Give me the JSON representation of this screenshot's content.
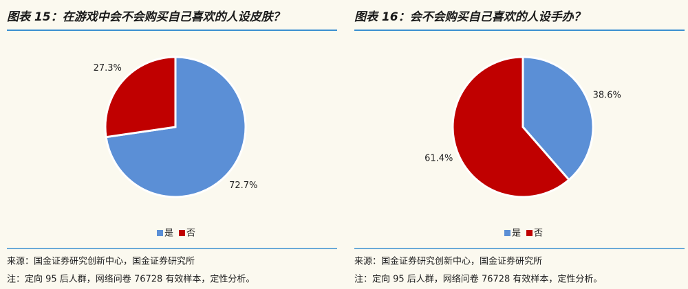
{
  "chart_data": [
    {
      "type": "pie",
      "title": "图表 15：在游戏中会不会购买自己喜欢的人设皮肤？",
      "categories": [
        "是",
        "否"
      ],
      "values": [
        72.7,
        27.3
      ],
      "value_labels": [
        "72.7%",
        "27.3%"
      ],
      "colors": [
        "#5b8fd6",
        "#c00000"
      ],
      "source": "来源：国金证券研究创新中心，国金证券研究所",
      "note": "注：定向 95 后人群，网络问卷 76728 有效样本，定性分析。"
    },
    {
      "type": "pie",
      "title": "图表 16：会不会购买自己喜欢的人设手办？",
      "categories": [
        "是",
        "否"
      ],
      "values": [
        38.6,
        61.4
      ],
      "value_labels": [
        "38.6%",
        "61.4%"
      ],
      "colors": [
        "#5b8fd6",
        "#c00000"
      ],
      "source": "来源：国金证券研究创新中心，国金证券研究所",
      "note": "注：定向 95 后人群，网络问卷 76728 有效样本，定性分析。"
    }
  ]
}
